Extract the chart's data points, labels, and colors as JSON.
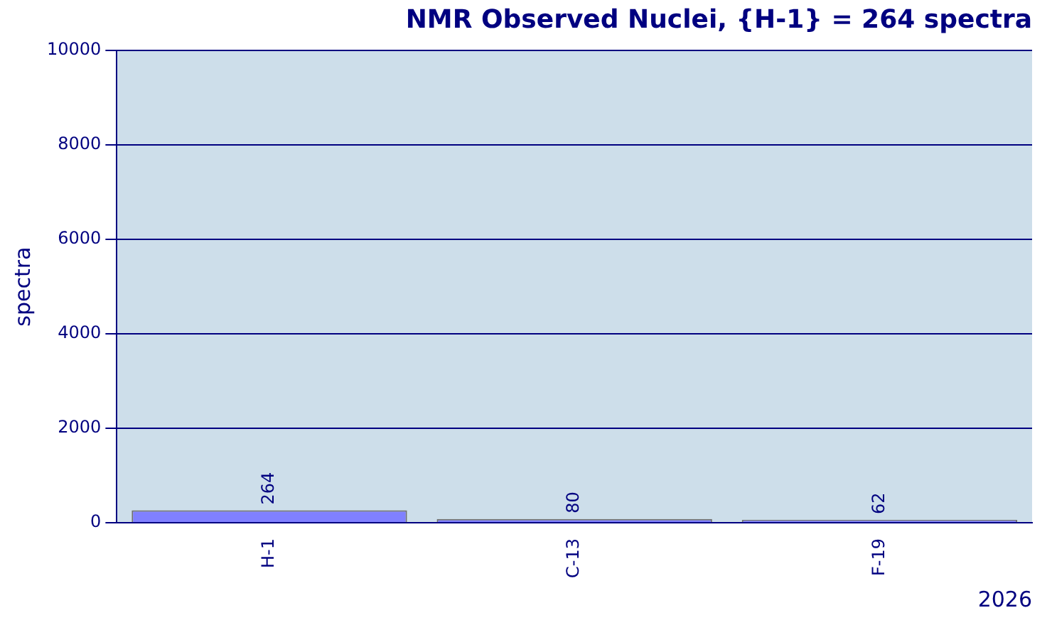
{
  "chart_data": {
    "type": "bar",
    "title": "NMR Observed Nuclei, {H-1} = 264 spectra",
    "xlabel": "2026",
    "ylabel": "spectra",
    "categories": [
      "H-1",
      "C-13",
      "F-19"
    ],
    "values": [
      264,
      80,
      62
    ],
    "color": "#8080ff",
    "ylim": [
      0,
      10000
    ],
    "yticks": [
      0,
      2000,
      4000,
      6000,
      8000,
      10000
    ],
    "grid": "y",
    "legend": false,
    "data_labels": true
  }
}
